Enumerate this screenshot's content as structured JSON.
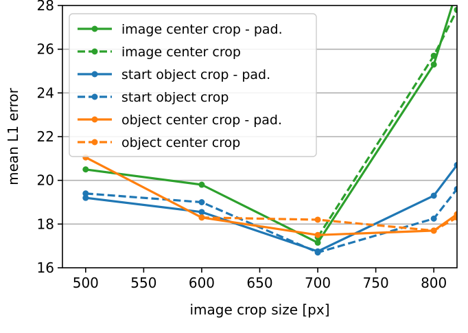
{
  "chart_data": {
    "type": "line",
    "xlabel": "image crop size [px]",
    "ylabel": "mean L1 error",
    "xlim": [
      480,
      820
    ],
    "ylim": [
      16,
      28
    ],
    "xticks": [
      500,
      550,
      600,
      650,
      700,
      750,
      800
    ],
    "yticks": [
      16,
      18,
      20,
      22,
      24,
      26,
      28
    ],
    "grid": "horizontal",
    "legend_position": "top-left",
    "x": [
      500,
      600,
      700,
      800,
      820
    ],
    "series": [
      {
        "name": "image center crop - pad.",
        "color": "#2ca02c",
        "style": "solid",
        "values": [
          20.5,
          19.8,
          17.15,
          25.3,
          28.7
        ]
      },
      {
        "name": "image center crop",
        "color": "#2ca02c",
        "style": "dashed",
        "values": [
          null,
          null,
          17.4,
          25.7,
          27.8
        ]
      },
      {
        "name": "start object crop - pad.",
        "color": "#1f77b4",
        "style": "solid",
        "values": [
          19.2,
          18.55,
          16.75,
          19.3,
          20.7
        ]
      },
      {
        "name": "start object crop",
        "color": "#1f77b4",
        "style": "dashed",
        "values": [
          19.4,
          19.0,
          16.7,
          18.25,
          19.6
        ]
      },
      {
        "name": "object center crop - pad.",
        "color": "#ff7f0e",
        "style": "solid",
        "values": [
          21.05,
          18.3,
          17.5,
          17.7,
          18.45
        ]
      },
      {
        "name": "object center crop",
        "color": "#ff7f0e",
        "style": "dashed",
        "values": [
          null,
          18.3,
          18.2,
          17.7,
          18.3
        ]
      }
    ]
  }
}
